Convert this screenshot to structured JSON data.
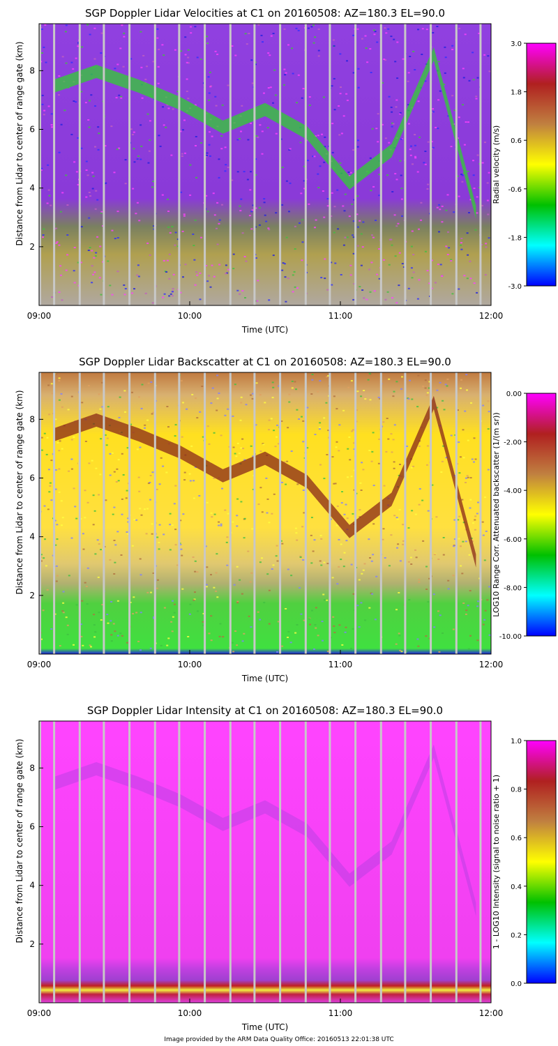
{
  "footer": "Image provided by the ARM Data Quality Office: 20160513 22:01:38 UTC",
  "chart_data": [
    {
      "type": "heatmap",
      "variable": "velocity",
      "title": "SGP Doppler Lidar Velocities at C1 on 20160508: AZ=180.3 EL=90.0",
      "xlabel": "Time (UTC)",
      "ylabel": "Distance from Lidar to center of range gate (km)",
      "x_ticks": [
        "09:00",
        "10:00",
        "11:00",
        "12:00"
      ],
      "xlim_hours": [
        9,
        12
      ],
      "y_ticks": [
        "2",
        "4",
        "6",
        "8"
      ],
      "ylim_km": [
        0,
        9.6
      ],
      "colorbar_label": "Radial velocity (m/s)",
      "colorbar_ticks": [
        "3.0",
        "1.8",
        "0.6",
        "-0.6",
        "-1.8",
        "-3.0"
      ],
      "colorbar_range": [
        -3.0,
        3.0
      ],
      "gap_times_hours": [
        9.1,
        9.27,
        9.43,
        9.6,
        9.77,
        9.93,
        10.1,
        10.27,
        10.43,
        10.6,
        10.77,
        10.93,
        11.1,
        11.27,
        11.43,
        11.6,
        11.77,
        11.93
      ],
      "layer_top_km": [
        7.7,
        8.2,
        7.7,
        7.1,
        6.3,
        6.9,
        6.1,
        4.4,
        5.5,
        8.8,
        3.4
      ]
    },
    {
      "type": "heatmap",
      "variable": "backscatter",
      "title": "SGP Doppler Lidar Backscatter at C1 on 20160508: AZ=180.3 EL=90.0",
      "xlabel": "Time (UTC)",
      "ylabel": "Distance from Lidar to center of range gate (km)",
      "x_ticks": [
        "09:00",
        "10:00",
        "11:00",
        "12:00"
      ],
      "xlim_hours": [
        9,
        12
      ],
      "y_ticks": [
        "2",
        "4",
        "6",
        "8"
      ],
      "ylim_km": [
        0,
        9.6
      ],
      "colorbar_label": "LOG10 Range Corr. Attenuated backscatter (1/(m sr))",
      "colorbar_ticks": [
        "0.00",
        "-2.00",
        "-4.00",
        "-6.00",
        "-8.00",
        "-10.00"
      ],
      "colorbar_range": [
        -10.0,
        0.0
      ],
      "gap_times_hours": [
        9.1,
        9.27,
        9.43,
        9.6,
        9.77,
        9.93,
        10.1,
        10.27,
        10.43,
        10.6,
        10.77,
        10.93,
        11.1,
        11.27,
        11.43,
        11.6,
        11.77,
        11.93
      ]
    },
    {
      "type": "heatmap",
      "variable": "intensity",
      "title": "SGP Doppler Lidar Intensity at C1 on 20160508: AZ=180.3 EL=90.0",
      "xlabel": "Time (UTC)",
      "ylabel": "Distance from Lidar to center of range gate (km)",
      "x_ticks": [
        "09:00",
        "10:00",
        "11:00",
        "12:00"
      ],
      "xlim_hours": [
        9,
        12
      ],
      "y_ticks": [
        "2",
        "4",
        "6",
        "8"
      ],
      "ylim_km": [
        0,
        9.6
      ],
      "colorbar_label": "1 - LOG10 Intensity (signal to noise ratio + 1)",
      "colorbar_ticks": [
        "1.0",
        "0.8",
        "0.6",
        "0.4",
        "0.2",
        "0.0"
      ],
      "colorbar_range": [
        0.0,
        1.0
      ],
      "gap_times_hours": [
        9.1,
        9.27,
        9.43,
        9.6,
        9.77,
        9.93,
        10.1,
        10.27,
        10.43,
        10.6,
        10.77,
        10.93,
        11.1,
        11.27,
        11.43,
        11.6,
        11.77,
        11.93
      ]
    }
  ],
  "colors": {
    "colormap": [
      "#0000ff",
      "#00ffff",
      "#00c000",
      "#ffff00",
      "#c08040",
      "#b02020",
      "#ff00ff"
    ],
    "gap_line": "#c8c8c8",
    "background": "#ffffff"
  }
}
